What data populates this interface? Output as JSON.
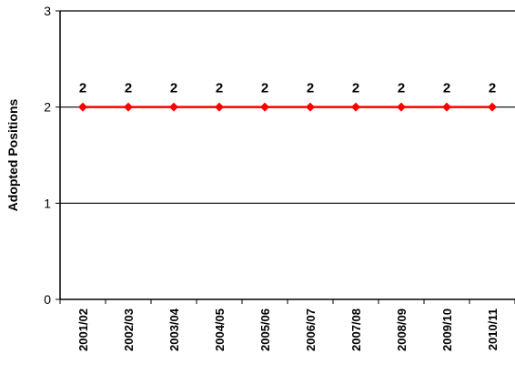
{
  "chart_data": {
    "type": "line",
    "title": "",
    "xlabel": "",
    "ylabel": "Adopted Positions",
    "categories": [
      "2001/02",
      "2002/03",
      "2003/04",
      "2004/05",
      "2005/06",
      "2006/07",
      "2007/08",
      "2008/09",
      "2009/10",
      "2010/11"
    ],
    "series": [
      {
        "values": [
          2,
          2,
          2,
          2,
          2,
          2,
          2,
          2,
          2,
          2
        ],
        "color": "#ff0000",
        "marker": "diamond",
        "data_labels": [
          "2",
          "2",
          "2",
          "2",
          "2",
          "2",
          "2",
          "2",
          "2",
          "2"
        ]
      }
    ],
    "ylim": [
      0,
      3
    ],
    "yticks": [
      "0",
      "1",
      "2",
      "3"
    ],
    "grid": true,
    "legend": "none"
  }
}
